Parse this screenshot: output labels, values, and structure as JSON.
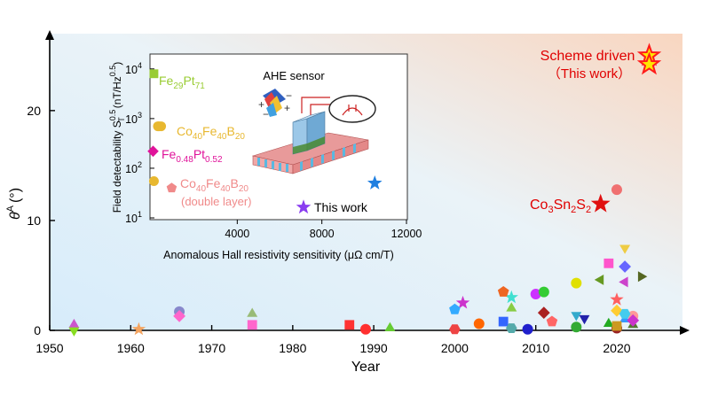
{
  "chart_data": [
    {
      "type": "scatter",
      "title": "",
      "xlabel": "Year",
      "ylabel": "θ",
      "ylabel_sup": "A",
      "ylabel_unit": "(°)",
      "xlim": [
        1950,
        2028
      ],
      "ylim": [
        0,
        27
      ],
      "x_ticks": [
        1950,
        1960,
        1970,
        1980,
        1990,
        2000,
        2010,
        2020
      ],
      "y_ticks": [
        0,
        10,
        20
      ],
      "background": "gradient light-blue (left) to light-orange (top-right)",
      "series": [
        {
          "marker": "star",
          "points": [
            {
              "x": 2024,
              "y": 25.0,
              "color": "#ff1a1a",
              "fill": "#ffe600"
            },
            {
              "x": 2024,
              "y": 24.2,
              "color": "#ff1a1a",
              "fill": "#ffe600"
            },
            {
              "x": 2018,
              "y": 11.5,
              "color": "#e01010"
            },
            {
              "x": 1961,
              "y": 0.1,
              "color": "#f4a460"
            },
            {
              "x": 2007,
              "y": 3.0,
              "color": "#40e0d0"
            },
            {
              "x": 2020,
              "y": 2.8,
              "color": "#ff6060"
            },
            {
              "x": 2001,
              "y": 2.5,
              "color": "#cc33cc"
            }
          ]
        },
        {
          "marker": "circle",
          "points": [
            {
              "x": 2020,
              "y": 12.8,
              "color": "#f07070"
            },
            {
              "x": 1989,
              "y": 0.1,
              "color": "#ff3030"
            },
            {
              "x": 2003,
              "y": 0.6,
              "color": "#ff6600"
            },
            {
              "x": 2009,
              "y": 0.1,
              "color": "#2020cc"
            },
            {
              "x": 2010,
              "y": 3.3,
              "color": "#cc33ff"
            },
            {
              "x": 2011,
              "y": 3.5,
              "color": "#33cc33"
            },
            {
              "x": 2015,
              "y": 4.3,
              "color": "#e0e000"
            },
            {
              "x": 2015,
              "y": 0.3,
              "color": "#33aa33"
            },
            {
              "x": 2020,
              "y": 0.2,
              "color": "#992222"
            },
            {
              "x": 2022,
              "y": 1.3,
              "color": "#ff9999"
            },
            {
              "x": 1966,
              "y": 1.7,
              "color": "#8888cc"
            }
          ]
        },
        {
          "marker": "triangle",
          "points": [
            {
              "x": 1953,
              "y": 0.5,
              "color": "#cc55cc"
            },
            {
              "x": 1975,
              "y": 1.5,
              "color": "#99bb77"
            },
            {
              "x": 1992,
              "y": 0.2,
              "color": "#66cc33"
            },
            {
              "x": 2007,
              "y": 2.0,
              "color": "#88cc44"
            },
            {
              "x": 2019,
              "y": 0.6,
              "color": "#22aa22"
            },
            {
              "x": 2021,
              "y": 1.0,
              "color": "#3399ff"
            },
            {
              "x": 2022,
              "y": 0.5,
              "color": "#557733"
            }
          ]
        },
        {
          "marker": "triangle-down",
          "points": [
            {
              "x": 1953,
              "y": 0.0,
              "color": "#88dd22"
            },
            {
              "x": 2015,
              "y": 1.4,
              "color": "#33aacc"
            },
            {
              "x": 2016,
              "y": 1.1,
              "color": "#2222aa"
            },
            {
              "x": 2021,
              "y": 7.5,
              "color": "#eecc44"
            }
          ]
        },
        {
          "marker": "triangle-left",
          "points": [
            {
              "x": 2018,
              "y": 4.6,
              "color": "#669922"
            },
            {
              "x": 2021,
              "y": 4.4,
              "color": "#cc44cc"
            }
          ]
        },
        {
          "marker": "triangle-right",
          "points": [
            {
              "x": 2023,
              "y": 4.9,
              "color": "#556622"
            }
          ]
        },
        {
          "marker": "square",
          "points": [
            {
              "x": 1975,
              "y": 0.5,
              "color": "#ff66cc"
            },
            {
              "x": 1987,
              "y": 0.5,
              "color": "#ff3333"
            },
            {
              "x": 2006,
              "y": 0.8,
              "color": "#3366ff"
            },
            {
              "x": 2019,
              "y": 6.1,
              "color": "#ff55cc"
            },
            {
              "x": 2020,
              "y": 0.4,
              "color": "#cc9922"
            }
          ]
        },
        {
          "marker": "diamond",
          "points": [
            {
              "x": 1966,
              "y": 1.3,
              "color": "#ff66cc"
            },
            {
              "x": 2011,
              "y": 1.6,
              "color": "#aa2222"
            },
            {
              "x": 2021,
              "y": 5.8,
              "color": "#6666ff"
            },
            {
              "x": 2020,
              "y": 1.8,
              "color": "#ffcc33"
            },
            {
              "x": 2022,
              "y": 0.9,
              "color": "#cc33cc"
            }
          ]
        },
        {
          "marker": "pentagon",
          "points": [
            {
              "x": 2000,
              "y": 1.9,
              "color": "#33aaff"
            },
            {
              "x": 2006,
              "y": 3.5,
              "color": "#ee6622"
            },
            {
              "x": 2012,
              "y": 0.8,
              "color": "#ff6666"
            }
          ]
        },
        {
          "marker": "hexagon",
          "points": [
            {
              "x": 2000,
              "y": 0.1,
              "color": "#ee4444"
            },
            {
              "x": 2007,
              "y": 0.2,
              "color": "#55aaaa"
            },
            {
              "x": 2021,
              "y": 1.5,
              "color": "#44ccee"
            }
          ]
        }
      ],
      "annotations": [
        {
          "text": "Scheme driven",
          "color": "#e00000"
        },
        {
          "text": "（This work）",
          "color": "#e00000"
        }
      ],
      "co3sn2s2": {
        "parts": [
          "Co",
          "3",
          "Sn",
          "2",
          "S",
          "2"
        ],
        "color": "#e00000"
      }
    },
    {
      "type": "scatter",
      "title": "AHE sensor",
      "xlabel": "Anomalous Hall resistivity sensitivity (μΩ cm/T)",
      "ylabel": "Field detectability S",
      "ylabel_sub": "T",
      "ylabel_sup": "0.5",
      "ylabel_unit_parts": [
        "(nT/Hz",
        "0.5",
        ")"
      ],
      "xlim": [
        0,
        12000
      ],
      "ylim_log10": [
        1,
        4.3
      ],
      "x_ticks": [
        4000,
        8000,
        12000
      ],
      "y_ticks": [
        {
          "base": "10",
          "exp": "1",
          "v": 1
        },
        {
          "base": "10",
          "exp": "2",
          "v": 2
        },
        {
          "base": "10",
          "exp": "3",
          "v": 3
        },
        {
          "base": "10",
          "exp": "4",
          "v": 4
        }
      ],
      "series": [
        {
          "marker": "square",
          "color": "#99cc33",
          "points": [
            {
              "x": 60,
              "y": 8000
            }
          ],
          "label_parts": [
            "Fe",
            "29",
            "Pt",
            "71"
          ]
        },
        {
          "marker": "circle",
          "color": "#e8b830",
          "points": [
            {
              "x": 250,
              "y": 700
            },
            {
              "x": 300,
              "y": 700
            },
            {
              "x": 400,
              "y": 700
            }
          ],
          "label_parts": [
            "Co",
            "40",
            "Fe",
            "40",
            "B",
            "20"
          ]
        },
        {
          "marker": "diamond",
          "color": "#e0139a",
          "points": [
            {
              "x": 20,
              "y": 220
            }
          ],
          "label_parts": [
            "Fe",
            "0.48",
            "Pt",
            "0.52"
          ]
        },
        {
          "marker": "circle",
          "color": "#e8b830",
          "points": [
            {
              "x": 60,
              "y": 55
            }
          ],
          "label_parts": [
            "Co",
            "40",
            "Fe",
            "40",
            "B",
            "20"
          ]
        },
        {
          "marker": "pentagon",
          "color": "#f08a8a",
          "points": [
            {
              "x": 900,
              "y": 40
            }
          ],
          "label_parts": [
            "Co",
            "40",
            "Fe",
            "40",
            "B",
            "20"
          ],
          "label_extra": "(double layer)"
        },
        {
          "marker": "star",
          "color": "#1f7fe0",
          "points": [
            {
              "x": 10500,
              "y": 50
            }
          ]
        }
      ],
      "legend": {
        "marker": "star",
        "color": "#8a3df0",
        "text": "This work"
      }
    }
  ]
}
